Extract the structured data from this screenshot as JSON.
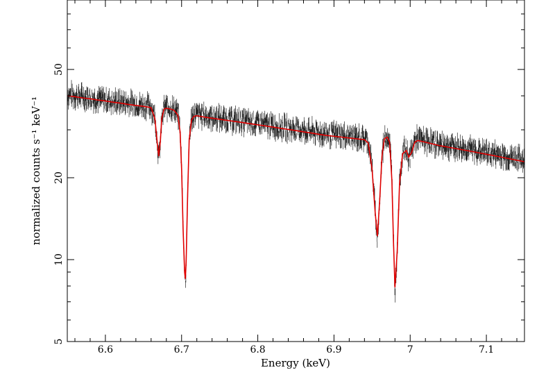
{
  "chart_data": {
    "type": "line",
    "title": "",
    "xlabel": "Energy (keV)",
    "ylabel": "normalized counts s⁻¹ keV⁻¹",
    "xlim": [
      6.55,
      7.15
    ],
    "ylim": [
      5,
      90
    ],
    "yscale": "log",
    "x_ticks": [
      6.6,
      6.7,
      6.8,
      6.9,
      7.0,
      7.1
    ],
    "x_tick_labels": [
      "6.6",
      "6.7",
      "6.8",
      "6.9",
      "7",
      "7.1"
    ],
    "y_ticks": [
      5,
      10,
      20,
      50
    ],
    "y_tick_labels": [
      "5",
      "10",
      "20",
      "50"
    ],
    "grid": false,
    "colors": {
      "data": "#000000",
      "model": "#e00000"
    },
    "series": [
      {
        "kind": "data",
        "x": [
          6.55,
          6.56,
          6.57,
          6.58,
          6.59,
          6.6,
          6.61,
          6.62,
          6.63,
          6.64,
          6.65,
          6.66,
          6.665,
          6.668,
          6.67,
          6.672,
          6.674,
          6.677,
          6.68,
          6.685,
          6.69,
          6.695,
          6.698,
          6.7,
          6.702,
          6.704,
          6.705,
          6.706,
          6.708,
          6.71,
          6.713,
          6.716,
          6.72,
          6.73,
          6.74,
          6.75,
          6.76,
          6.77,
          6.78,
          6.79,
          6.8,
          6.81,
          6.82,
          6.83,
          6.84,
          6.85,
          6.86,
          6.87,
          6.88,
          6.89,
          6.9,
          6.91,
          6.92,
          6.93,
          6.94,
          6.945,
          6.95,
          6.954,
          6.957,
          6.96,
          6.963,
          6.966,
          6.97,
          6.973,
          6.976,
          6.978,
          6.98,
          6.983,
          6.986,
          6.99,
          6.995,
          6.998,
          7.002,
          7.006,
          7.01,
          7.02,
          7.03,
          7.04,
          7.05,
          7.06,
          7.07,
          7.08,
          7.09,
          7.1,
          7.11,
          7.12,
          7.13,
          7.14,
          7.15
        ],
        "y": [
          40.5,
          40.2,
          39.8,
          39.4,
          39.0,
          38.7,
          38.3,
          38.0,
          37.7,
          37.3,
          37.0,
          36.6,
          33.5,
          27.5,
          23.5,
          26.5,
          32.5,
          36.0,
          36.4,
          36.2,
          35.8,
          34.5,
          30.0,
          22.0,
          13.5,
          9.0,
          8.2,
          9.5,
          17.0,
          28.0,
          33.0,
          34.0,
          34.2,
          33.8,
          33.5,
          33.2,
          32.9,
          32.6,
          32.3,
          32.0,
          31.7,
          31.4,
          31.1,
          30.8,
          30.5,
          30.2,
          29.9,
          29.6,
          29.3,
          29.0,
          28.8,
          28.6,
          28.4,
          28.2,
          28.0,
          27.2,
          22.0,
          15.0,
          11.8,
          16.0,
          24.0,
          28.0,
          28.6,
          27.5,
          20.0,
          12.0,
          7.6,
          10.5,
          19.0,
          25.0,
          25.5,
          23.5,
          25.0,
          27.5,
          27.8,
          27.4,
          27.0,
          26.6,
          26.3,
          26.0,
          25.7,
          25.4,
          25.1,
          24.8,
          24.5,
          24.2,
          23.9,
          23.6,
          23.3
        ]
      },
      {
        "kind": "model",
        "x": [
          6.55,
          6.56,
          6.57,
          6.58,
          6.59,
          6.6,
          6.61,
          6.62,
          6.63,
          6.64,
          6.65,
          6.66,
          6.665,
          6.668,
          6.67,
          6.672,
          6.674,
          6.677,
          6.68,
          6.685,
          6.69,
          6.695,
          6.698,
          6.7,
          6.702,
          6.704,
          6.705,
          6.706,
          6.708,
          6.71,
          6.713,
          6.716,
          6.72,
          6.73,
          6.74,
          6.75,
          6.76,
          6.77,
          6.78,
          6.79,
          6.8,
          6.81,
          6.82,
          6.83,
          6.84,
          6.85,
          6.86,
          6.87,
          6.88,
          6.89,
          6.9,
          6.91,
          6.92,
          6.93,
          6.94,
          6.945,
          6.95,
          6.954,
          6.957,
          6.96,
          6.963,
          6.966,
          6.97,
          6.973,
          6.976,
          6.978,
          6.98,
          6.983,
          6.986,
          6.99,
          6.995,
          6.998,
          7.002,
          7.006,
          7.01,
          7.02,
          7.03,
          7.04,
          7.05,
          7.06,
          7.07,
          7.08,
          7.09,
          7.1,
          7.11,
          7.12,
          7.13,
          7.14,
          7.15
        ],
        "y": [
          40.0,
          39.7,
          39.3,
          39.0,
          38.6,
          38.3,
          37.9,
          37.6,
          37.2,
          36.9,
          36.6,
          36.2,
          33.0,
          27.0,
          24.0,
          27.0,
          33.0,
          35.8,
          36.0,
          35.8,
          35.4,
          34.0,
          29.5,
          21.5,
          13.0,
          9.0,
          8.5,
          9.8,
          17.5,
          27.5,
          32.5,
          33.6,
          33.8,
          33.4,
          33.1,
          32.8,
          32.5,
          32.2,
          31.9,
          31.6,
          31.3,
          31.0,
          30.7,
          30.4,
          30.1,
          29.8,
          29.5,
          29.2,
          28.9,
          28.6,
          28.4,
          28.2,
          28.0,
          27.8,
          27.6,
          26.8,
          21.5,
          15.0,
          12.2,
          16.5,
          24.0,
          27.8,
          28.2,
          27.0,
          19.5,
          11.8,
          7.9,
          10.8,
          19.0,
          24.5,
          25.2,
          23.8,
          24.8,
          27.0,
          27.4,
          27.0,
          26.6,
          26.2,
          25.9,
          25.6,
          25.3,
          25.0,
          24.7,
          24.4,
          24.1,
          23.8,
          23.5,
          23.2,
          22.9
        ]
      }
    ]
  }
}
